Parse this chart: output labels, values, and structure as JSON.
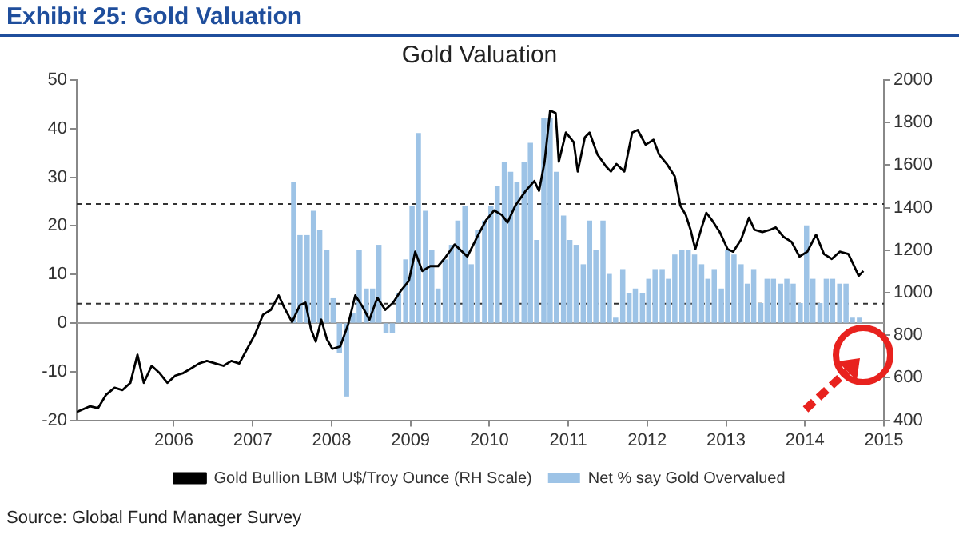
{
  "chart_data": {
    "type": "bar",
    "title": "Exhibit 25: Gold Valuation",
    "subtitle": "Gold Valuation",
    "annotations": [
      "Source: Global Fund Manager Survey"
    ],
    "xlim": [
      2004.77,
      2015
    ],
    "xticks": [
      2006,
      2007,
      2008,
      2009,
      2010,
      2011,
      2012,
      2013,
      2014,
      2015
    ],
    "ylim": [
      -20,
      50
    ],
    "yticks": [
      -20,
      -10,
      0,
      10,
      20,
      30,
      40,
      50
    ],
    "y2lim": [
      400,
      2000
    ],
    "y2ticks": [
      400,
      600,
      800,
      1000,
      1200,
      1400,
      1600,
      1800,
      2000
    ],
    "grid": false,
    "legend": "bottom",
    "ref_lines": [
      {
        "axis": "y",
        "value": 0,
        "line_style": "solid",
        "color": "#999999"
      },
      {
        "axis": "y",
        "value": 24.5,
        "line_style": "dashed",
        "color": "#333333"
      },
      {
        "axis": "y",
        "value": 4,
        "line_style": "dashed",
        "color": "#333333"
      }
    ],
    "series": [
      {
        "name": "Net % say Gold Overvalued",
        "color": "#9dc3e6",
        "x": [
          2007.52,
          2007.6,
          2007.69,
          2007.77,
          2007.85,
          2007.94,
          2008.02,
          2008.1,
          2008.19,
          2008.27,
          2008.35,
          2008.44,
          2008.52,
          2008.6,
          2008.69,
          2008.77,
          2008.85,
          2008.94,
          2009.02,
          2009.1,
          2009.19,
          2009.27,
          2009.35,
          2009.44,
          2009.52,
          2009.6,
          2009.69,
          2009.77,
          2009.85,
          2009.94,
          2010.02,
          2010.1,
          2010.19,
          2010.27,
          2010.35,
          2010.44,
          2010.52,
          2010.6,
          2010.69,
          2010.77,
          2010.85,
          2010.94,
          2011.02,
          2011.1,
          2011.19,
          2011.27,
          2011.35,
          2011.44,
          2011.52,
          2011.6,
          2011.69,
          2011.77,
          2011.85,
          2011.94,
          2012.02,
          2012.1,
          2012.19,
          2012.27,
          2012.35,
          2012.44,
          2012.52,
          2012.6,
          2012.69,
          2012.77,
          2012.85,
          2012.94,
          2013.02,
          2013.1,
          2013.19,
          2013.27,
          2013.35,
          2013.44,
          2013.52,
          2013.6,
          2013.69,
          2013.77,
          2013.85,
          2013.94,
          2014.02,
          2014.1,
          2014.19,
          2014.27,
          2014.35,
          2014.44,
          2014.52,
          2014.6,
          2014.69
        ],
        "values": [
          29,
          18,
          18,
          23,
          19,
          15,
          5,
          -6,
          -15,
          2,
          15,
          7,
          7,
          16,
          -2,
          -2,
          6,
          13,
          24,
          39,
          23,
          15,
          7,
          13,
          16,
          21,
          24,
          12,
          19,
          21,
          24,
          28,
          33,
          31,
          29,
          33,
          37,
          17,
          42,
          42,
          31,
          22,
          17,
          16,
          12,
          21,
          15,
          21,
          10,
          1,
          11,
          6,
          7,
          6,
          9,
          11,
          11,
          9,
          14,
          15,
          15,
          14,
          12,
          9,
          11,
          7,
          15,
          14,
          12,
          8,
          11,
          4,
          9,
          9,
          8,
          9,
          8,
          4,
          20,
          9,
          4,
          9,
          9,
          8,
          8,
          1,
          1
        ]
      },
      {
        "name": "Gold Bullion LBM U$/Troy Ounce (RH Scale)",
        "type": "line",
        "axis": "y2",
        "color": "#000000",
        "marker": "none",
        "line_style": "solid",
        "x": [
          2004.77,
          2004.94,
          2005.04,
          2005.14,
          2005.25,
          2005.35,
          2005.45,
          2005.54,
          2005.62,
          2005.72,
          2005.82,
          2005.92,
          2006.02,
          2006.12,
          2006.22,
          2006.32,
          2006.42,
          2006.53,
          2006.63,
          2006.73,
          2006.83,
          2006.93,
          2007.03,
          2007.13,
          2007.23,
          2007.33,
          2007.4,
          2007.5,
          2007.6,
          2007.67,
          2007.74,
          2007.8,
          2007.87,
          2007.94,
          2008.01,
          2008.11,
          2008.21,
          2008.3,
          2008.38,
          2008.48,
          2008.58,
          2008.68,
          2008.78,
          2008.88,
          2008.98,
          2009.06,
          2009.15,
          2009.25,
          2009.35,
          2009.45,
          2009.56,
          2009.72,
          2009.86,
          2009.96,
          2010.06,
          2010.16,
          2010.23,
          2010.33,
          2010.46,
          2010.57,
          2010.63,
          2010.7,
          2010.77,
          2010.84,
          2010.88,
          2010.97,
          2011.07,
          2011.12,
          2011.21,
          2011.27,
          2011.37,
          2011.48,
          2011.54,
          2011.61,
          2011.71,
          2011.81,
          2011.88,
          2011.98,
          2012.08,
          2012.15,
          2012.25,
          2012.35,
          2012.42,
          2012.49,
          2012.55,
          2012.61,
          2012.69,
          2012.75,
          2012.82,
          2012.92,
          2013.02,
          2013.09,
          2013.19,
          2013.29,
          2013.36,
          2013.46,
          2013.56,
          2013.63,
          2013.73,
          2013.83,
          2013.93,
          2014.03,
          2014.14,
          2014.24,
          2014.34,
          2014.44,
          2014.55,
          2014.61,
          2014.68,
          2014.74
        ],
        "values": [
          439,
          466,
          457,
          519,
          553,
          542,
          576,
          708,
          576,
          656,
          622,
          576,
          610,
          622,
          644,
          667,
          679,
          667,
          656,
          679,
          667,
          736,
          804,
          896,
          919,
          987,
          930,
          862,
          942,
          953,
          827,
          770,
          873,
          782,
          736,
          747,
          850,
          987,
          942,
          873,
          976,
          919,
          953,
          1010,
          1056,
          1193,
          1102,
          1125,
          1125,
          1170,
          1227,
          1170,
          1273,
          1342,
          1387,
          1365,
          1330,
          1410,
          1479,
          1525,
          1479,
          1616,
          1856,
          1845,
          1616,
          1753,
          1707,
          1570,
          1730,
          1753,
          1650,
          1593,
          1570,
          1605,
          1570,
          1753,
          1765,
          1696,
          1719,
          1650,
          1605,
          1547,
          1410,
          1365,
          1296,
          1205,
          1307,
          1376,
          1342,
          1285,
          1205,
          1193,
          1250,
          1353,
          1296,
          1285,
          1296,
          1307,
          1262,
          1239,
          1170,
          1193,
          1273,
          1182,
          1159,
          1193,
          1182,
          1136,
          1079,
          1102
        ]
      }
    ]
  }
}
